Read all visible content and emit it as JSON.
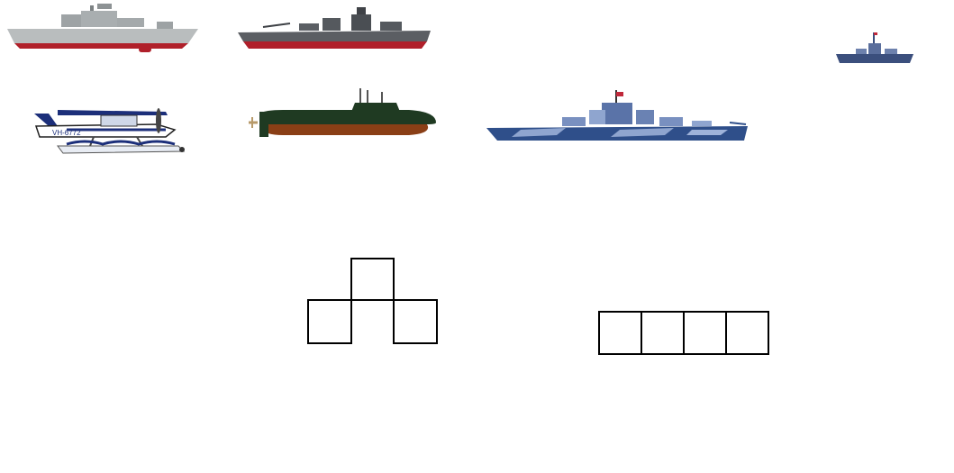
{
  "vessels": [
    {
      "name": "frigate-grey",
      "hull": "#b9bdbe",
      "waterline": "#b0202a",
      "icon": "frigate-icon"
    },
    {
      "name": "battleship-dark",
      "hull": "#5b5e63",
      "waterline": "#b01f2a",
      "icon": "battleship-icon"
    },
    {
      "name": "destroyer-blue",
      "hull": "#3b4f7d",
      "icon": "destroyer-icon"
    },
    {
      "name": "seaplane",
      "body": "#ffffff",
      "floats": "#e8ecf3",
      "stripe": "#1c2f7a",
      "registration": "VH-6772",
      "icon": "seaplane-icon"
    },
    {
      "name": "submarine",
      "top": "#1f3a22",
      "bottom": "#8a3f16",
      "icon": "submarine-icon"
    },
    {
      "name": "battleship-camo",
      "hull": "#2f4f8a",
      "camo": "#8fa5cf",
      "icon": "battleship-icon"
    }
  ],
  "boards": {
    "t_shape": {
      "cells": 4
    },
    "row_shape": {
      "cells": 4
    }
  },
  "colors": {
    "background": "#ffffff",
    "outline": "#000000"
  }
}
